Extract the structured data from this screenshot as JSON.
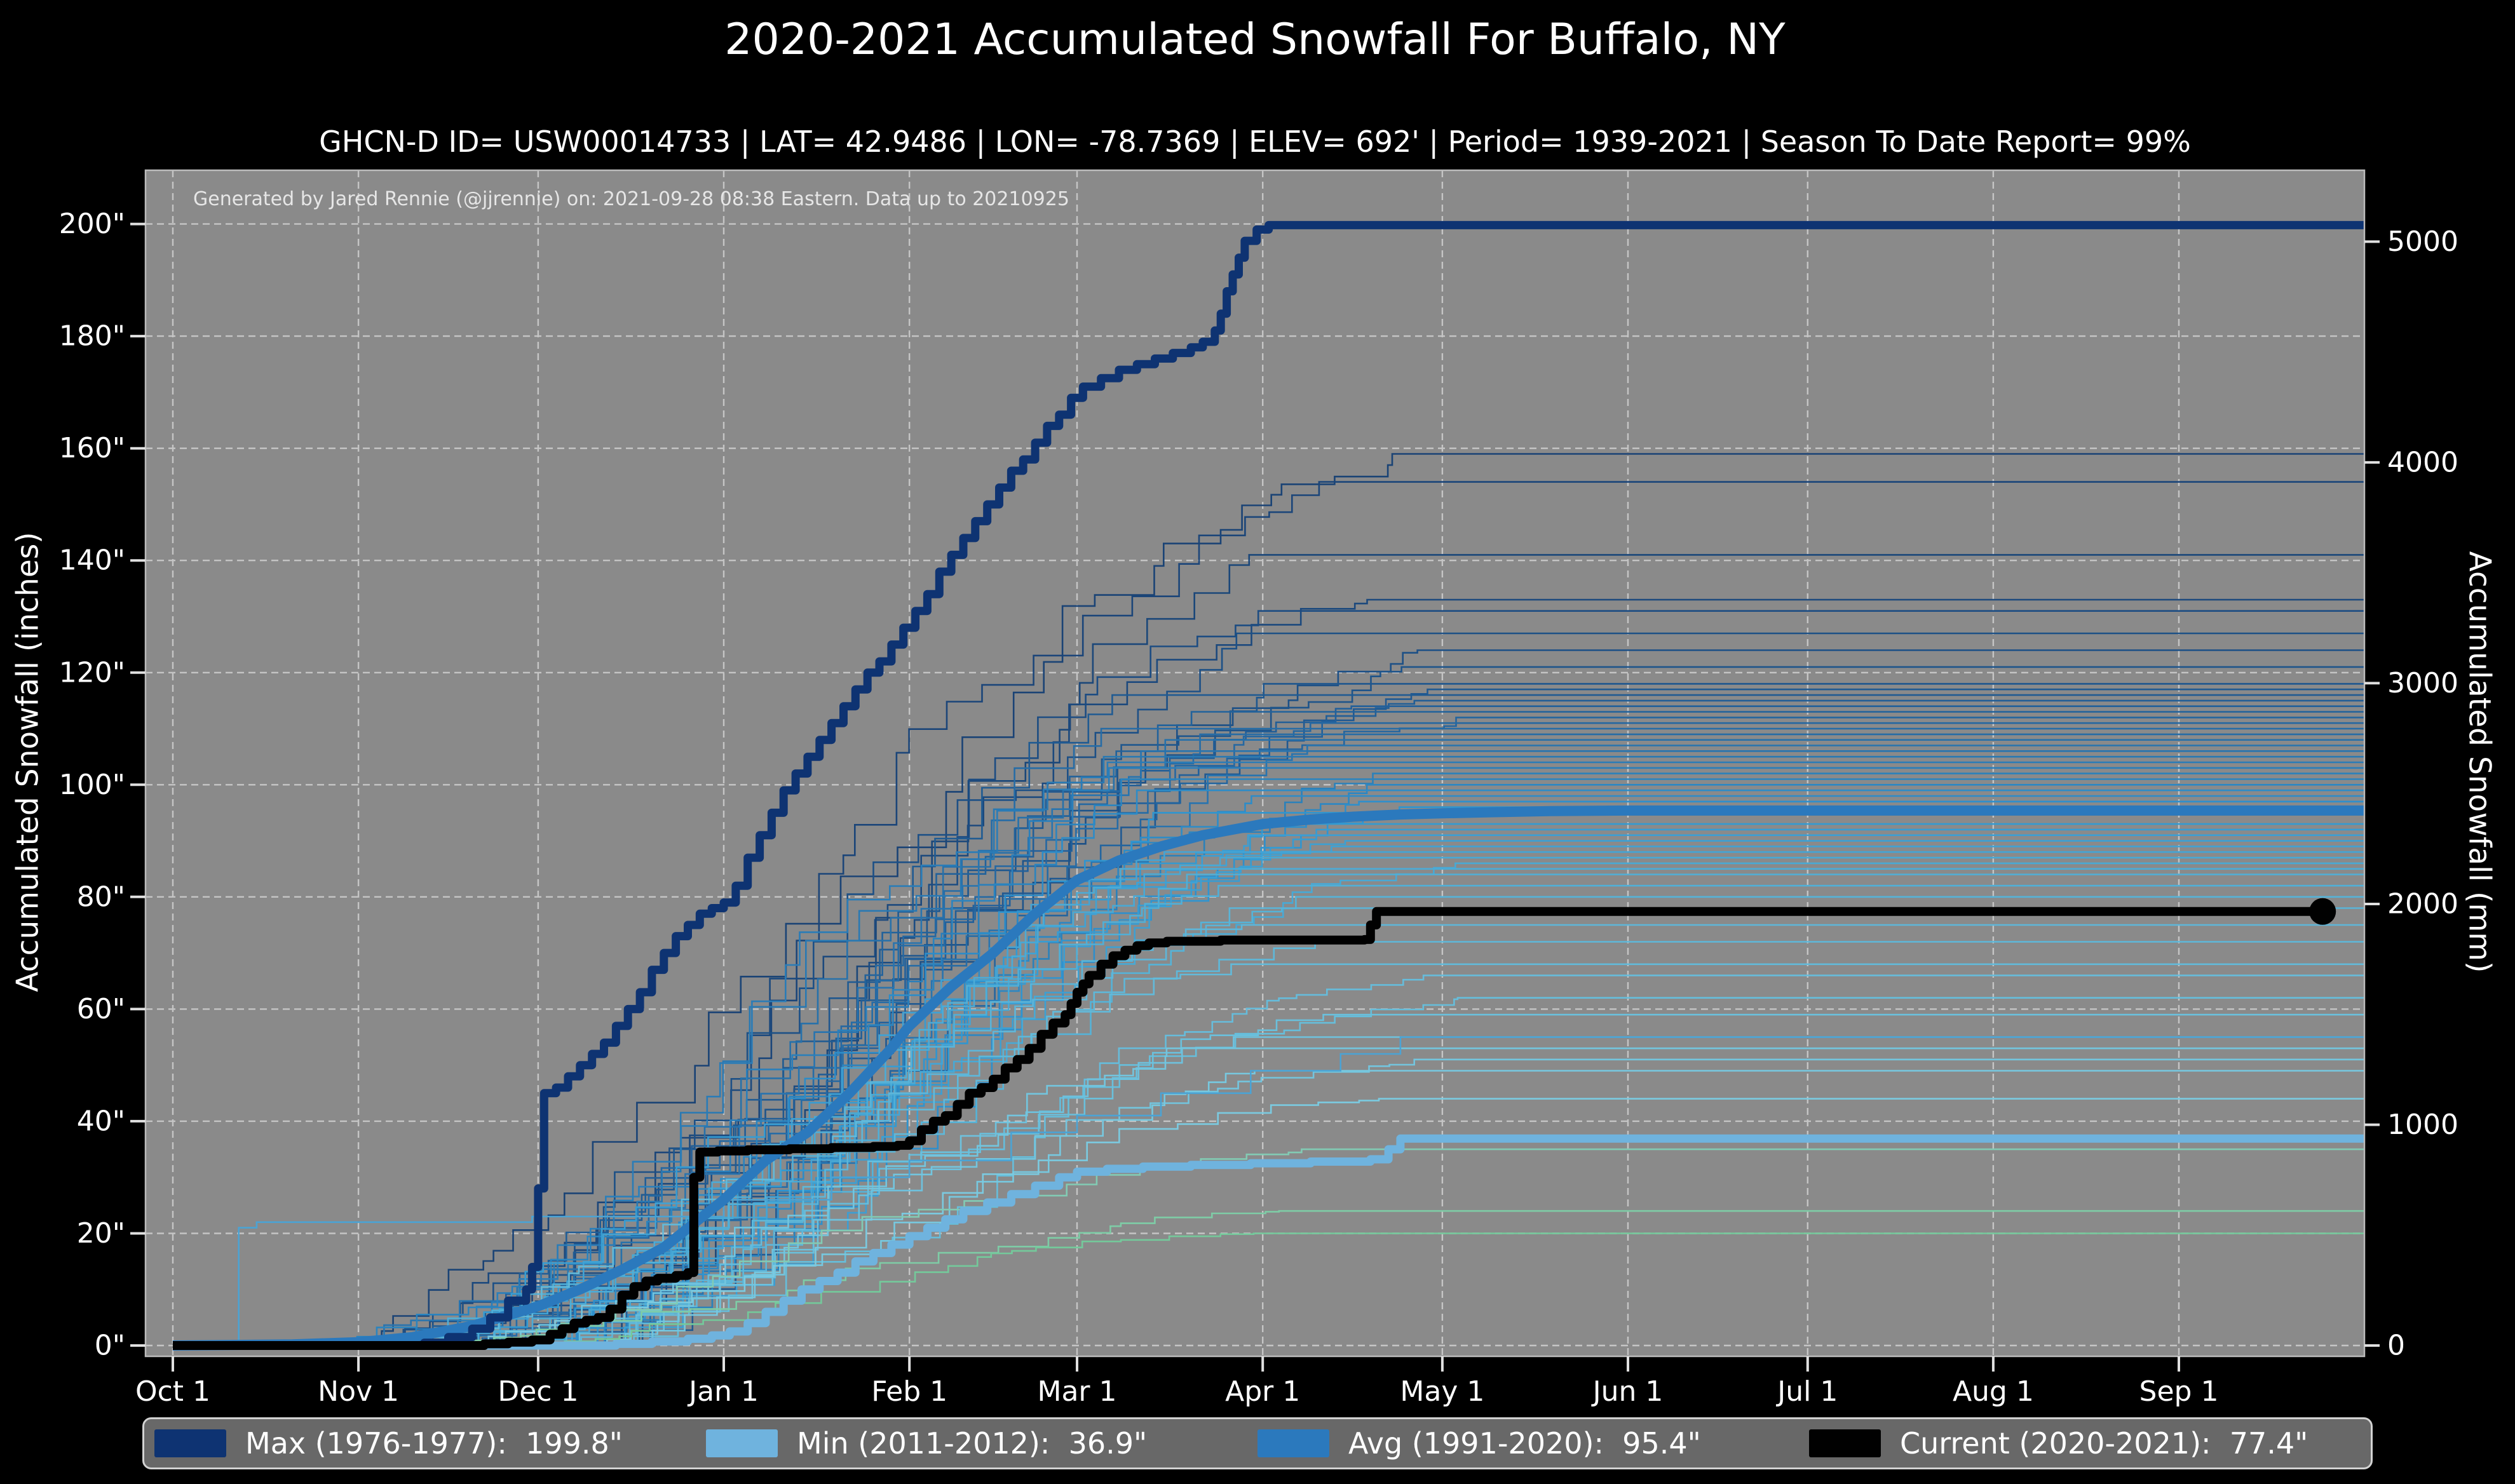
{
  "title": "2020-2021 Accumulated Snowfall For Buffalo, NY",
  "subtitle": "GHCN-D ID= USW00014733 | LAT= 42.9486 | LON= -78.7369 | ELEV= 692' | Period= 1939-2021 | Season To Date Report= 99%",
  "watermark": "Generated by Jared Rennie (@jjrennie) on: 2021-09-28 08:38 Eastern. Data up to 20210925",
  "colors": {
    "page_bg": "#000000",
    "plot_bg": "#8a8a8a",
    "grid": "#c9c9c9",
    "tick": "#e0e0e0",
    "spine": "#bcbcbc",
    "text": "#ffffff",
    "legend_bg": "#686868",
    "legend_border": "#d2d2d2",
    "max": "#0e3372",
    "min": "#6fb3de",
    "avg": "#2b79bd",
    "current": "#010101"
  },
  "legend": [
    {
      "key": "max",
      "label": "Max (1976-1977):  199.8\"",
      "color": "#0e3372"
    },
    {
      "key": "min",
      "label": "Min (2011-2012):  36.9\"",
      "color": "#6fb3de"
    },
    {
      "key": "avg",
      "label": "Avg (1991-2020):  95.4\"",
      "color": "#2b79bd"
    },
    {
      "key": "current",
      "label": "Current (2020-2021):  77.4\"",
      "color": "#010101"
    }
  ],
  "chart_data": {
    "type": "line",
    "title": "2020-2021 Accumulated Snowfall For Buffalo, NY",
    "x": {
      "unit": "days since Oct 1",
      "domain_days": [
        -4.6,
        366.4
      ],
      "ticks": [
        {
          "label": "Oct 1",
          "day": 0
        },
        {
          "label": "Nov 1",
          "day": 31
        },
        {
          "label": "Dec 1",
          "day": 61
        },
        {
          "label": "Jan 1",
          "day": 92
        },
        {
          "label": "Feb 1",
          "day": 123
        },
        {
          "label": "Mar 1",
          "day": 151
        },
        {
          "label": "Apr 1",
          "day": 182
        },
        {
          "label": "May 1",
          "day": 212
        },
        {
          "label": "Jun 1",
          "day": 243
        },
        {
          "label": "Jul 1",
          "day": 273
        },
        {
          "label": "Aug 1",
          "day": 304
        },
        {
          "label": "Sep 1",
          "day": 335
        }
      ]
    },
    "y_left": {
      "label": "Accumulated Snowfall (inches)",
      "suffix": "\"",
      "ticks": [
        0,
        20,
        40,
        60,
        80,
        100,
        120,
        140,
        160,
        180,
        200
      ],
      "domain": [
        -1.9,
        209.6
      ],
      "grid": true
    },
    "y_right": {
      "label": "Accumulated Snowfall (mm)",
      "ticks": [
        0,
        1000,
        2000,
        3000,
        4000,
        5000
      ],
      "mm_per_inch": 25.4
    },
    "grid": {
      "horizontal": true,
      "vertical": true,
      "dash": [
        11,
        7
      ]
    },
    "legend_position": "bottom",
    "series": [
      {
        "name": "Max (1976-1977)",
        "final": 199.8,
        "color": "#0e3372",
        "width": 13,
        "style": "steps",
        "points": [
          [
            0,
            0
          ],
          [
            38,
            0
          ],
          [
            42,
            0.5
          ],
          [
            46,
            1.5
          ],
          [
            50,
            3
          ],
          [
            53,
            5
          ],
          [
            56,
            8
          ],
          [
            59,
            10
          ],
          [
            60,
            14
          ],
          [
            61,
            28
          ],
          [
            62,
            45
          ],
          [
            64,
            46
          ],
          [
            66,
            48
          ],
          [
            68,
            50
          ],
          [
            70,
            52
          ],
          [
            72,
            54
          ],
          [
            74,
            57
          ],
          [
            76,
            60
          ],
          [
            78,
            63
          ],
          [
            80,
            67
          ],
          [
            82,
            70
          ],
          [
            84,
            73
          ],
          [
            86,
            75
          ],
          [
            88,
            77
          ],
          [
            90,
            78
          ],
          [
            92,
            79
          ],
          [
            94,
            82
          ],
          [
            96,
            87
          ],
          [
            98,
            91
          ],
          [
            100,
            95
          ],
          [
            102,
            99
          ],
          [
            104,
            102
          ],
          [
            106,
            105
          ],
          [
            108,
            108
          ],
          [
            110,
            111
          ],
          [
            112,
            114
          ],
          [
            114,
            117
          ],
          [
            116,
            120
          ],
          [
            118,
            122
          ],
          [
            120,
            125
          ],
          [
            122,
            128
          ],
          [
            124,
            131
          ],
          [
            126,
            134
          ],
          [
            128,
            138
          ],
          [
            130,
            141
          ],
          [
            132,
            144
          ],
          [
            134,
            147
          ],
          [
            136,
            150
          ],
          [
            138,
            153
          ],
          [
            140,
            156
          ],
          [
            142,
            158
          ],
          [
            144,
            161
          ],
          [
            146,
            164
          ],
          [
            148,
            166
          ],
          [
            150,
            169
          ],
          [
            152,
            171
          ],
          [
            155,
            172.5
          ],
          [
            158,
            174
          ],
          [
            161,
            175
          ],
          [
            164,
            176
          ],
          [
            167,
            177
          ],
          [
            170,
            178
          ],
          [
            172,
            179
          ],
          [
            174,
            181
          ],
          [
            175,
            184
          ],
          [
            176,
            188
          ],
          [
            177,
            191
          ],
          [
            178,
            194
          ],
          [
            179,
            197
          ],
          [
            181,
            199
          ],
          [
            183,
            199.8
          ],
          [
            366,
            199.8
          ]
        ]
      },
      {
        "name": "Min (2011-2012)",
        "final": 36.9,
        "color": "#6fb3de",
        "width": 13,
        "style": "steps",
        "points": [
          [
            0,
            0
          ],
          [
            68,
            0
          ],
          [
            74,
            0.3
          ],
          [
            80,
            0.7
          ],
          [
            86,
            1.2
          ],
          [
            90,
            1.8
          ],
          [
            93,
            2.5
          ],
          [
            96,
            4
          ],
          [
            99,
            6
          ],
          [
            102,
            8
          ],
          [
            105,
            10
          ],
          [
            108,
            11.5
          ],
          [
            111,
            13
          ],
          [
            114,
            15
          ],
          [
            117,
            16.5
          ],
          [
            120,
            18
          ],
          [
            123,
            19.5
          ],
          [
            126,
            21
          ],
          [
            129,
            22.5
          ],
          [
            132,
            24
          ],
          [
            136,
            25.5
          ],
          [
            140,
            27
          ],
          [
            144,
            28.5
          ],
          [
            148,
            30
          ],
          [
            151,
            31
          ],
          [
            156,
            31.5
          ],
          [
            162,
            31.9
          ],
          [
            170,
            32.2
          ],
          [
            180,
            32.5
          ],
          [
            190,
            32.8
          ],
          [
            200,
            33.2
          ],
          [
            203,
            35
          ],
          [
            205,
            36.9
          ],
          [
            366,
            36.9
          ]
        ]
      },
      {
        "name": "Avg (1991-2020)",
        "final": 95.4,
        "color": "#2b79bd",
        "width": 16,
        "style": "smooth",
        "points": [
          [
            0,
            0
          ],
          [
            20,
            0.2
          ],
          [
            31,
            0.6
          ],
          [
            40,
            1.5
          ],
          [
            50,
            3.5
          ],
          [
            61,
            7
          ],
          [
            68,
            10
          ],
          [
            75,
            13.5
          ],
          [
            82,
            17.5
          ],
          [
            92,
            26
          ],
          [
            99,
            33
          ],
          [
            106,
            38
          ],
          [
            113,
            45
          ],
          [
            120,
            53
          ],
          [
            123,
            57
          ],
          [
            130,
            64
          ],
          [
            137,
            70
          ],
          [
            144,
            77
          ],
          [
            151,
            83
          ],
          [
            158,
            86.5
          ],
          [
            165,
            89
          ],
          [
            172,
            91
          ],
          [
            182,
            93
          ],
          [
            190,
            93.8
          ],
          [
            197,
            94.3
          ],
          [
            205,
            94.7
          ],
          [
            212,
            94.9
          ],
          [
            220,
            95.1
          ],
          [
            230,
            95.3
          ],
          [
            243,
            95.4
          ],
          [
            366,
            95.4
          ]
        ]
      },
      {
        "name": "Current (2020-2021)",
        "final": 77.4,
        "color": "#010101",
        "width": 14,
        "style": "steps",
        "end_dot": {
          "day": 359,
          "value": 77.4,
          "radius": 21
        },
        "points": [
          [
            0,
            0
          ],
          [
            48,
            0
          ],
          [
            52,
            0.3
          ],
          [
            56,
            0.6
          ],
          [
            60,
            1
          ],
          [
            63,
            2
          ],
          [
            65,
            3
          ],
          [
            67,
            4
          ],
          [
            69,
            4.5
          ],
          [
            71,
            5
          ],
          [
            73,
            6.5
          ],
          [
            75,
            9
          ],
          [
            77,
            10.5
          ],
          [
            79,
            11.5
          ],
          [
            81,
            12
          ],
          [
            84,
            12.5
          ],
          [
            86,
            13
          ],
          [
            87,
            30
          ],
          [
            88,
            34.5
          ],
          [
            91,
            34.7
          ],
          [
            96,
            34.9
          ],
          [
            103,
            35.1
          ],
          [
            110,
            35.3
          ],
          [
            117,
            35.5
          ],
          [
            121,
            35.7
          ],
          [
            123,
            36.5
          ],
          [
            125,
            38.5
          ],
          [
            127,
            40
          ],
          [
            129,
            41
          ],
          [
            131,
            43
          ],
          [
            133,
            45
          ],
          [
            135,
            46
          ],
          [
            137,
            47.5
          ],
          [
            139,
            49.5
          ],
          [
            141,
            51
          ],
          [
            143,
            53
          ],
          [
            145,
            55.5
          ],
          [
            147,
            57.5
          ],
          [
            149,
            59
          ],
          [
            150,
            61
          ],
          [
            151,
            63
          ],
          [
            152,
            64.5
          ],
          [
            153,
            66
          ],
          [
            155,
            68
          ],
          [
            157,
            69.5
          ],
          [
            159,
            70.5
          ],
          [
            161,
            71.3
          ],
          [
            163,
            71.8
          ],
          [
            166,
            72.1
          ],
          [
            175,
            72.3
          ],
          [
            199,
            72.4
          ],
          [
            200,
            75
          ],
          [
            201,
            77.4
          ],
          [
            359,
            77.4
          ]
        ]
      }
    ],
    "background_seasons": {
      "description": "All seasons 1939-2021, season-end totals in inches, darkest = snowiest",
      "finals": [
        159,
        154,
        141,
        133,
        131,
        127,
        124,
        121,
        118,
        117,
        116,
        115,
        114,
        113,
        112,
        111,
        110,
        109,
        108,
        107,
        106,
        105,
        104,
        103,
        102,
        101,
        100,
        99,
        98,
        97,
        96,
        95,
        93,
        92,
        91,
        90,
        89,
        88,
        87,
        86,
        85,
        84,
        82,
        80,
        78,
        75,
        72,
        68,
        66,
        62,
        59,
        55,
        53,
        51,
        49,
        44,
        35,
        24,
        20
      ],
      "color_ramp": {
        "dark_hsl": [
          213,
          64,
          28
        ],
        "light_hsl": [
          192,
          62,
          70
        ]
      },
      "green_tail_colors": [
        "#82cbb4",
        "#7ecca6",
        "#74c99b"
      ],
      "early_season": {
        "final": 55,
        "color": "#4ba3d4",
        "points": [
          [
            0,
            0
          ],
          [
            9,
            0.5
          ],
          [
            11,
            21
          ],
          [
            14,
            22
          ],
          [
            60,
            23
          ],
          [
            92,
            26
          ],
          [
            110,
            30
          ],
          [
            123,
            33
          ],
          [
            140,
            38
          ],
          [
            151,
            41
          ],
          [
            165,
            45
          ],
          [
            180,
            49
          ],
          [
            195,
            52
          ],
          [
            205,
            55
          ],
          [
            366,
            55
          ]
        ]
      },
      "width": 2.6
    }
  }
}
